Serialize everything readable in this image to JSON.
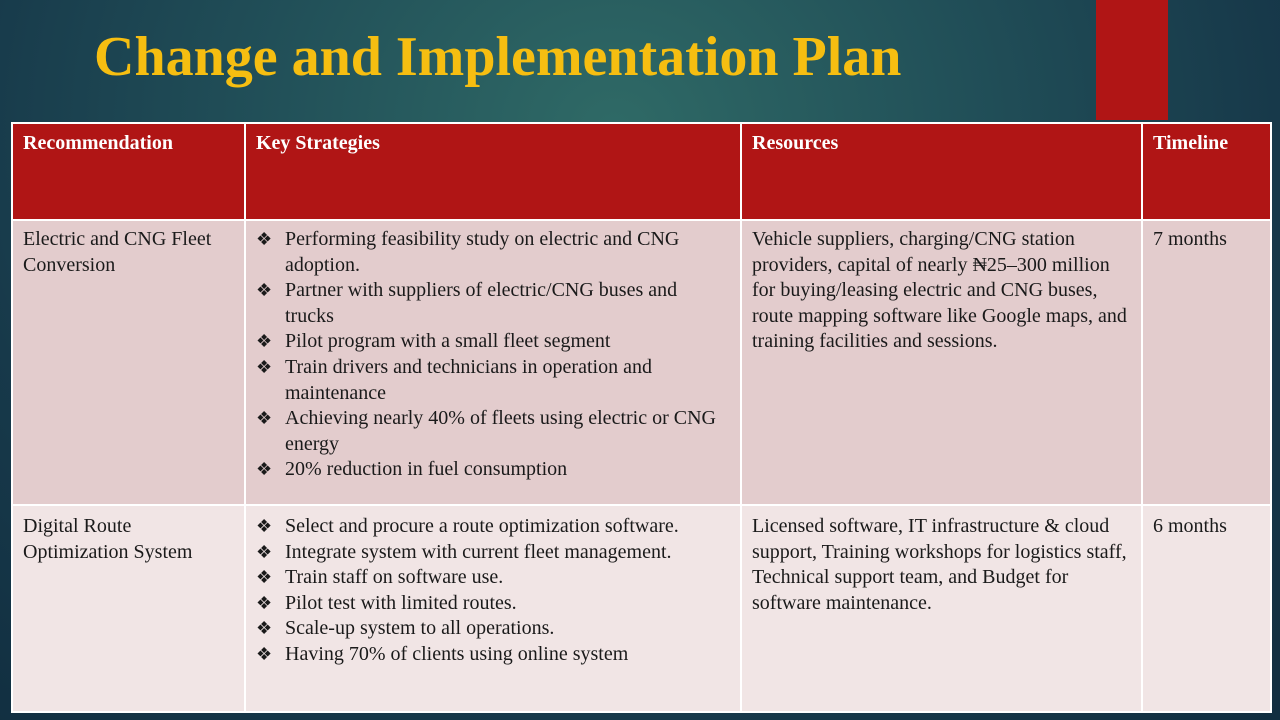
{
  "slide": {
    "title": "Change and Implementation Plan",
    "accent_color": "#b01515",
    "title_color": "#f6be11"
  },
  "table": {
    "headers": [
      "Recommendation",
      "Key Strategies",
      "Resources",
      "Timeline"
    ],
    "rows": [
      {
        "recommendation": "Electric and CNG Fleet Conversion",
        "strategies": [
          "Performing feasibility study on electric and CNG adoption.",
          "Partner with suppliers of electric/CNG buses and trucks",
          "Pilot program with a small fleet segment",
          "Train drivers and technicians in operation and maintenance",
          " Achieving nearly 40% of fleets using electric or CNG energy",
          "20% reduction in fuel consumption"
        ],
        "resources": "Vehicle suppliers, charging/CNG station providers, capital of nearly ₦25–300 million for buying/leasing electric and CNG buses, route mapping software like Google maps, and training facilities and sessions.",
        "timeline": "7 months"
      },
      {
        "recommendation": "Digital Route Optimization System",
        "strategies": [
          "Select and procure a route optimization software.",
          "Integrate system with current fleet management.",
          "Train staff on software use.",
          "Pilot test with limited routes.",
          "Scale-up system to all operations.",
          "Having 70% of clients using online system"
        ],
        "resources": "Licensed software, IT infrastructure & cloud support, Training workshops for logistics staff, Technical support team, and Budget for software maintenance.",
        "timeline": "6 months"
      }
    ]
  }
}
